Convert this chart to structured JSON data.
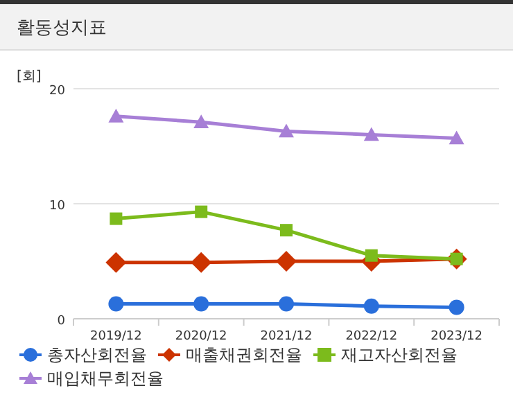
{
  "chart_data": {
    "type": "line",
    "title": "활동성지표",
    "ylabel": "[회]",
    "categories": [
      "2019/12",
      "2020/12",
      "2021/12",
      "2022/12",
      "2023/12"
    ],
    "series": [
      {
        "name": "총자산회전율",
        "color": "#2a6fdb",
        "marker": "circle",
        "values": [
          1.3,
          1.3,
          1.3,
          1.1,
          1.0
        ]
      },
      {
        "name": "매출채권회전율",
        "color": "#cc3300",
        "marker": "diamond",
        "values": [
          4.9,
          4.9,
          5.0,
          5.0,
          5.2
        ]
      },
      {
        "name": "재고자산회전율",
        "color": "#7cbb1c",
        "marker": "square",
        "values": [
          8.7,
          9.3,
          7.7,
          5.5,
          5.2
        ]
      },
      {
        "name": "매입채무회전율",
        "color": "#a77fd6",
        "marker": "triangle",
        "values": [
          17.6,
          17.1,
          16.3,
          16.0,
          15.7
        ]
      }
    ],
    "ylim": [
      0,
      20
    ],
    "yticks": [
      0,
      10,
      20
    ],
    "grid": "y",
    "legend": "bottom"
  }
}
